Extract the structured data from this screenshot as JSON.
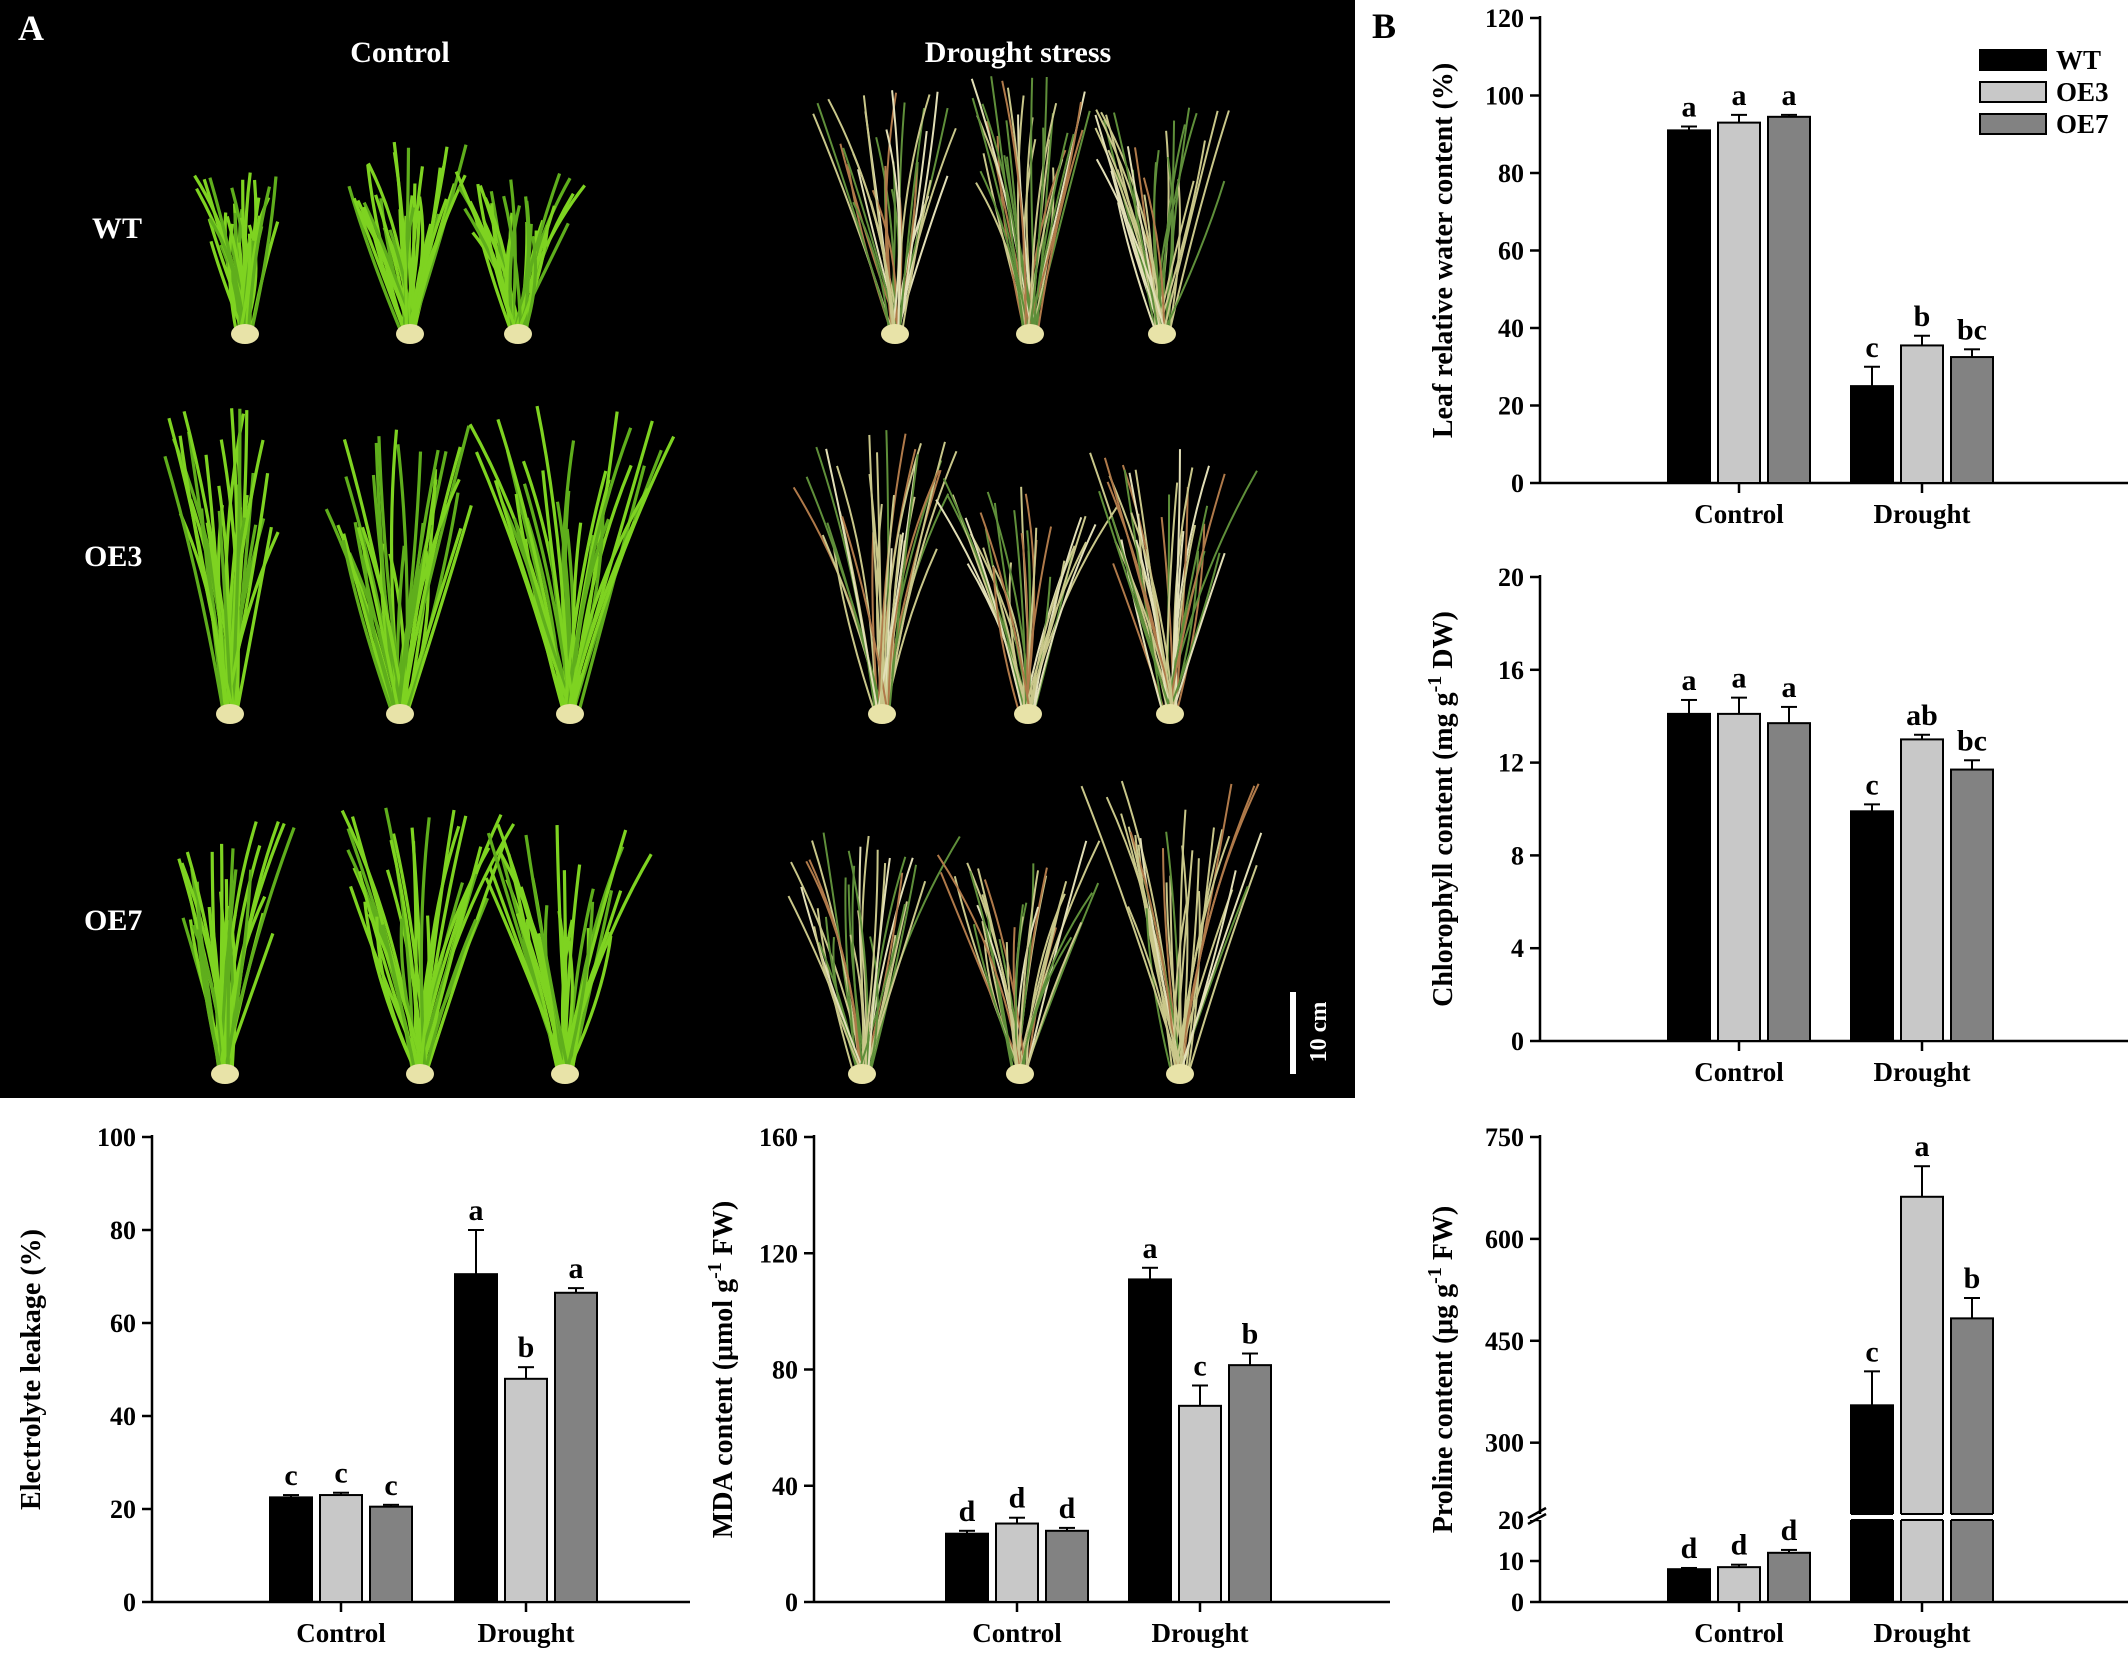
{
  "panel_labels": {
    "a": "A",
    "b": "B"
  },
  "photo": {
    "col_labels": [
      "Control",
      "Drought stress"
    ],
    "row_labels": [
      "WT",
      "OE3",
      "OE7"
    ],
    "scale_bar": "10 cm"
  },
  "legend": {
    "items": [
      {
        "label": "WT",
        "color": "#000000"
      },
      {
        "label": "OE3",
        "color": "#c8c8c8"
      },
      {
        "label": "OE7",
        "color": "#828282"
      }
    ],
    "placement": "top-right"
  },
  "chart_data": [
    {
      "id": "rwc",
      "type": "bar",
      "ylabel": "Leaf relative water content (%)",
      "categories": [
        "Control",
        "Drought"
      ],
      "ylim": [
        0,
        120
      ],
      "yticks": [
        0,
        20,
        40,
        60,
        80,
        100,
        120
      ],
      "series": [
        {
          "name": "WT",
          "color": "#000000",
          "values": [
            91,
            25
          ],
          "errors": [
            1,
            5
          ],
          "letters": [
            "a",
            "c"
          ]
        },
        {
          "name": "OE3",
          "color": "#c8c8c8",
          "values": [
            93,
            35.5
          ],
          "errors": [
            2,
            2.5
          ],
          "letters": [
            "a",
            "b"
          ]
        },
        {
          "name": "OE7",
          "color": "#828282",
          "values": [
            94.5,
            32.5
          ],
          "errors": [
            0.5,
            2
          ],
          "letters": [
            "a",
            "bc"
          ]
        }
      ]
    },
    {
      "id": "chl",
      "type": "bar",
      "ylabel": "Chlorophyll content (mg g-1 DW)",
      "categories": [
        "Control",
        "Drought"
      ],
      "ylim": [
        0,
        20
      ],
      "yticks": [
        0,
        4,
        8,
        12,
        16,
        20
      ],
      "series": [
        {
          "name": "WT",
          "color": "#000000",
          "values": [
            14.1,
            9.9
          ],
          "errors": [
            0.6,
            0.3
          ],
          "letters": [
            "a",
            "c"
          ]
        },
        {
          "name": "OE3",
          "color": "#c8c8c8",
          "values": [
            14.1,
            13
          ],
          "errors": [
            0.7,
            0.2
          ],
          "letters": [
            "a",
            "ab"
          ]
        },
        {
          "name": "OE7",
          "color": "#828282",
          "values": [
            13.7,
            11.7
          ],
          "errors": [
            0.7,
            0.4
          ],
          "letters": [
            "a",
            "bc"
          ]
        }
      ]
    },
    {
      "id": "el",
      "type": "bar",
      "ylabel": "Electrolyte leakage (%)",
      "categories": [
        "Control",
        "Drought"
      ],
      "ylim": [
        0,
        100
      ],
      "yticks": [
        0,
        20,
        40,
        60,
        80,
        100
      ],
      "series": [
        {
          "name": "WT",
          "color": "#000000",
          "values": [
            22.5,
            70.5
          ],
          "errors": [
            0.5,
            9.5
          ],
          "letters": [
            "c",
            "a"
          ]
        },
        {
          "name": "OE3",
          "color": "#c8c8c8",
          "values": [
            23,
            48
          ],
          "errors": [
            0.5,
            2.5
          ],
          "letters": [
            "c",
            "b"
          ]
        },
        {
          "name": "OE7",
          "color": "#828282",
          "values": [
            20.5,
            66.5
          ],
          "errors": [
            0.4,
            1
          ],
          "letters": [
            "c",
            "a"
          ]
        }
      ]
    },
    {
      "id": "mda",
      "type": "bar",
      "ylabel": "MDA content (μmol g-1 FW)",
      "categories": [
        "Control",
        "Drought"
      ],
      "ylim": [
        0,
        160
      ],
      "yticks": [
        0,
        40,
        80,
        120,
        160
      ],
      "series": [
        {
          "name": "WT",
          "color": "#000000",
          "values": [
            23.5,
            111
          ],
          "errors": [
            1,
            4
          ],
          "letters": [
            "d",
            "a"
          ]
        },
        {
          "name": "OE3",
          "color": "#c8c8c8",
          "values": [
            27,
            67.5
          ],
          "errors": [
            2,
            7
          ],
          "letters": [
            "d",
            "c"
          ]
        },
        {
          "name": "OE7",
          "color": "#828282",
          "values": [
            24.5,
            81.5
          ],
          "errors": [
            1,
            4
          ],
          "letters": [
            "d",
            "b"
          ]
        }
      ]
    },
    {
      "id": "pro",
      "type": "bar",
      "ylabel": "Proline content (μg g-1 FW)",
      "categories": [
        "Control",
        "Drought"
      ],
      "axis_break": true,
      "ylim_lower": [
        0,
        20
      ],
      "yticks_lower": [
        0,
        10,
        20
      ],
      "ylim_upper": [
        195,
        750
      ],
      "yticks_upper": [
        300,
        450,
        600,
        750
      ],
      "series": [
        {
          "name": "WT",
          "color": "#000000",
          "values": [
            8,
            355
          ],
          "errors": [
            0.3,
            50
          ],
          "letters": [
            "d",
            "c"
          ]
        },
        {
          "name": "OE3",
          "color": "#c8c8c8",
          "values": [
            8.5,
            662
          ],
          "errors": [
            0.6,
            45
          ],
          "letters": [
            "d",
            "a"
          ]
        },
        {
          "name": "OE7",
          "color": "#828282",
          "values": [
            12,
            483
          ],
          "errors": [
            0.7,
            30
          ],
          "letters": [
            "d",
            "b"
          ]
        }
      ]
    }
  ]
}
